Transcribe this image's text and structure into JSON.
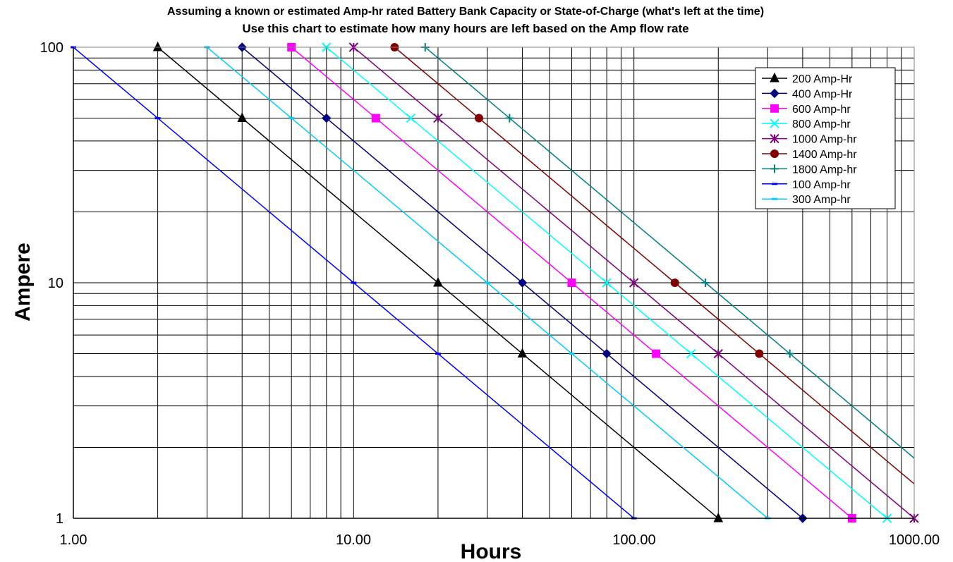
{
  "chart_data": {
    "type": "line",
    "title": "Assuming a known or estimated Amp-hr rated Battery Bank Capacity or State-of-Charge (what's left at the time)",
    "subtitle": "Use this chart to estimate how many hours are left based on the Amp flow rate",
    "xlabel": "Hours",
    "ylabel": "Ampere",
    "x_scale": "log",
    "y_scale": "log",
    "xlim": [
      1,
      1000
    ],
    "ylim": [
      1,
      100
    ],
    "x_ticks": [
      "1.00",
      "10.00",
      "100.00",
      "1000.00"
    ],
    "y_ticks": [
      "1",
      "10",
      "100"
    ],
    "grid": true,
    "legend_position": "top-right",
    "series": [
      {
        "name": "200 Amp-Hr",
        "color": "#000000",
        "marker": "triangle",
        "points": [
          [
            2,
            100
          ],
          [
            4,
            50
          ],
          [
            20,
            10
          ],
          [
            40,
            5
          ],
          [
            200,
            1
          ]
        ]
      },
      {
        "name": "400 Amp-Hr",
        "color": "#000080",
        "marker": "diamond",
        "points": [
          [
            4,
            100
          ],
          [
            8,
            50
          ],
          [
            40,
            10
          ],
          [
            80,
            5
          ],
          [
            400,
            1
          ]
        ]
      },
      {
        "name": "600 Amp-hr",
        "color": "#FF00FF",
        "marker": "square",
        "points": [
          [
            6,
            100
          ],
          [
            12,
            50
          ],
          [
            60,
            10
          ],
          [
            120,
            5
          ],
          [
            600,
            1
          ]
        ]
      },
      {
        "name": "800 Amp-hr",
        "color": "#00FFFF",
        "marker": "x",
        "points": [
          [
            8,
            100
          ],
          [
            16,
            50
          ],
          [
            80,
            10
          ],
          [
            160,
            5
          ],
          [
            800,
            1
          ]
        ]
      },
      {
        "name": "1000 Amp-hr",
        "color": "#800080",
        "marker": "star",
        "points": [
          [
            10,
            100
          ],
          [
            20,
            50
          ],
          [
            100,
            10
          ],
          [
            200,
            5
          ],
          [
            1000,
            1
          ]
        ]
      },
      {
        "name": "1400 Amp-hr",
        "color": "#800000",
        "marker": "circle",
        "points": [
          [
            14,
            100
          ],
          [
            28,
            50
          ],
          [
            140,
            10
          ],
          [
            280,
            5
          ],
          [
            1400,
            1
          ]
        ]
      },
      {
        "name": "1800 Amp-hr",
        "color": "#008080",
        "marker": "plus",
        "points": [
          [
            18,
            100
          ],
          [
            36,
            50
          ],
          [
            180,
            10
          ],
          [
            360,
            5
          ],
          [
            1800,
            1
          ]
        ]
      },
      {
        "name": "100 Amp-hr",
        "color": "#0000FF",
        "marker": "dash",
        "points": [
          [
            1,
            100
          ],
          [
            2,
            50
          ],
          [
            10,
            10
          ],
          [
            20,
            5
          ],
          [
            100,
            1
          ]
        ]
      },
      {
        "name": "300 Amp-hr",
        "color": "#00CCFF",
        "marker": "dash",
        "points": [
          [
            3,
            100
          ],
          [
            6,
            50
          ],
          [
            30,
            10
          ],
          [
            60,
            5
          ],
          [
            300,
            1
          ]
        ]
      }
    ]
  }
}
